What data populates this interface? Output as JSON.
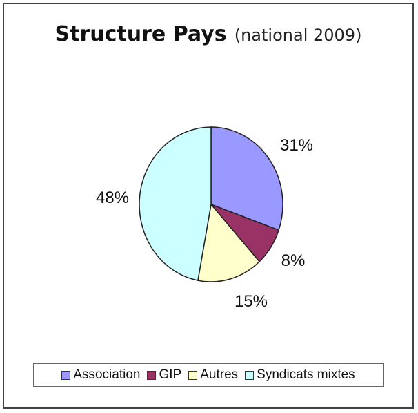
{
  "chart_data": {
    "type": "pie",
    "title": "Structure Pays",
    "subtitle": "(national 2009)",
    "categories": [
      "Association",
      "GIP",
      "Autres",
      "Syndicats mixtes"
    ],
    "values": [
      31,
      8,
      15,
      48
    ],
    "labels": [
      "31%",
      "8%",
      "15%",
      "48%"
    ],
    "colors": [
      "#9999ff",
      "#993366",
      "#ffffcc",
      "#ccffff"
    ],
    "legend_position": "bottom"
  }
}
